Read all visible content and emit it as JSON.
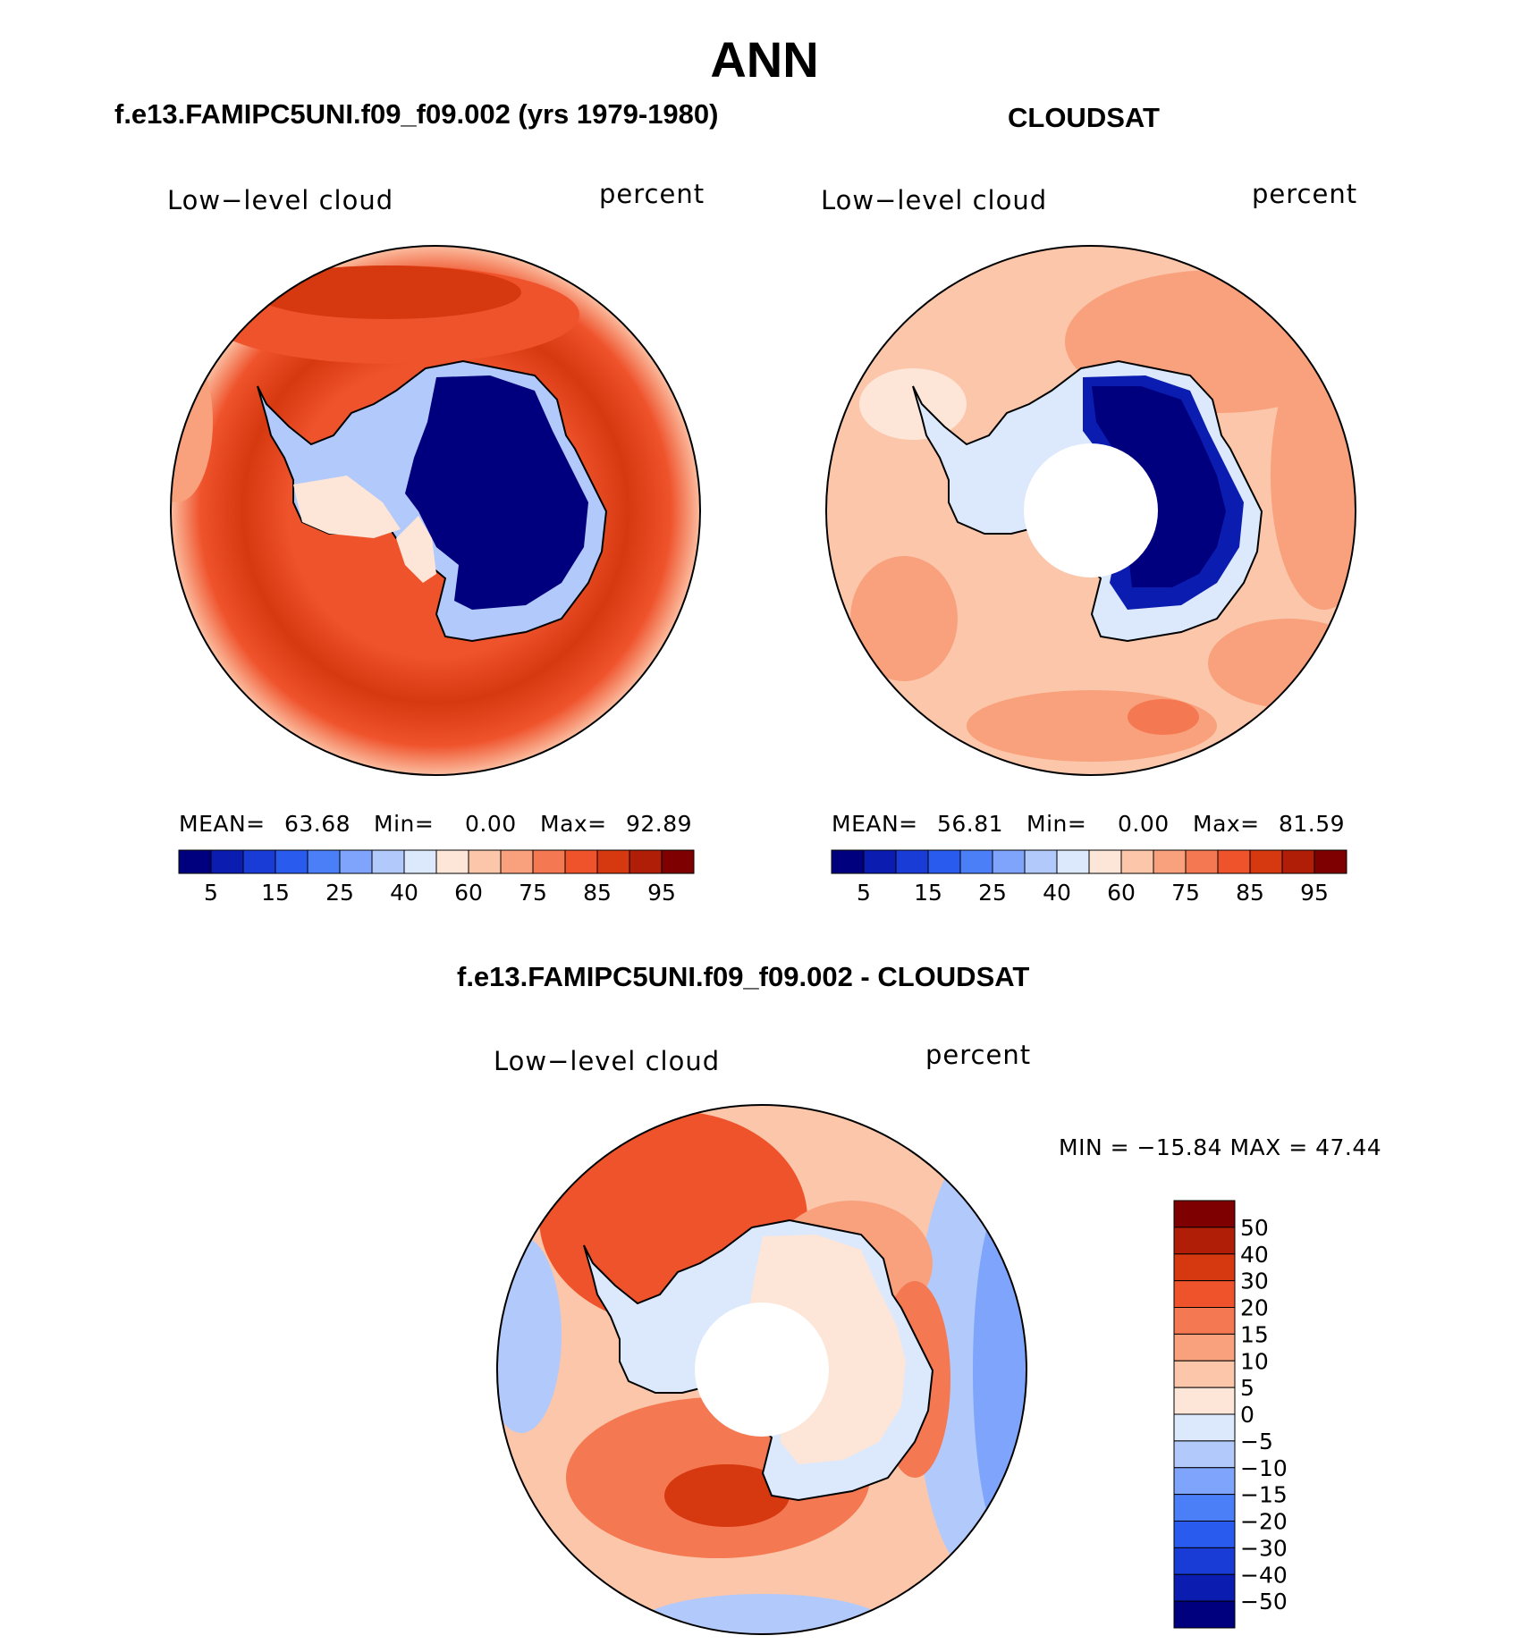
{
  "title": "ANN",
  "panels": [
    {
      "title": "f.e13.FAMIPC5UNI.f09_f09.002 (yrs 1979-1980)",
      "field": "Low−level cloud",
      "units": "percent",
      "stats": {
        "mean_label": "MEAN=",
        "mean": "63.68",
        "min_label": "Min=",
        "min": "0.00",
        "max_label": "Max=",
        "max": "92.89"
      }
    },
    {
      "title": "CLOUDSAT",
      "field": "Low−level cloud",
      "units": "percent",
      "stats": {
        "mean_label": "MEAN=",
        "mean": "56.81",
        "min_label": "Min=",
        "min": "0.00",
        "max_label": "Max=",
        "max": "81.59"
      }
    },
    {
      "title": "f.e13.FAMIPC5UNI.f09_f09.002 - CLOUDSAT",
      "field": "Low−level cloud",
      "units": "percent",
      "minmax": "MIN = −15.84 MAX =   47.44"
    }
  ],
  "colorbar_abs": {
    "labels": [
      "5",
      "15",
      "25",
      "40",
      "60",
      "75",
      "85",
      "95"
    ],
    "colors": [
      "#00007f",
      "#0a1db0",
      "#1a3cd6",
      "#2a5bef",
      "#4a7ff8",
      "#7fa4fb",
      "#b2c9fb",
      "#dce8fc",
      "#fde6d8",
      "#fcc6aa",
      "#f8a17c",
      "#f47852",
      "#ef532c",
      "#d6380f",
      "#b01e08",
      "#7f0000"
    ]
  },
  "colorbar_diff": {
    "labels": [
      "50",
      "40",
      "30",
      "20",
      "15",
      "10",
      "5",
      "0",
      "−5",
      "−10",
      "−15",
      "−20",
      "−30",
      "−40",
      "−50"
    ],
    "colors": [
      "#7f0000",
      "#b01e08",
      "#d6380f",
      "#ef532c",
      "#f47852",
      "#f8a17c",
      "#fcc6aa",
      "#fde6d8",
      "#dce8fc",
      "#b2c9fb",
      "#7fa4fb",
      "#4a7ff8",
      "#2a5bef",
      "#1a3cd6",
      "#0a1db0",
      "#00007f"
    ]
  }
}
